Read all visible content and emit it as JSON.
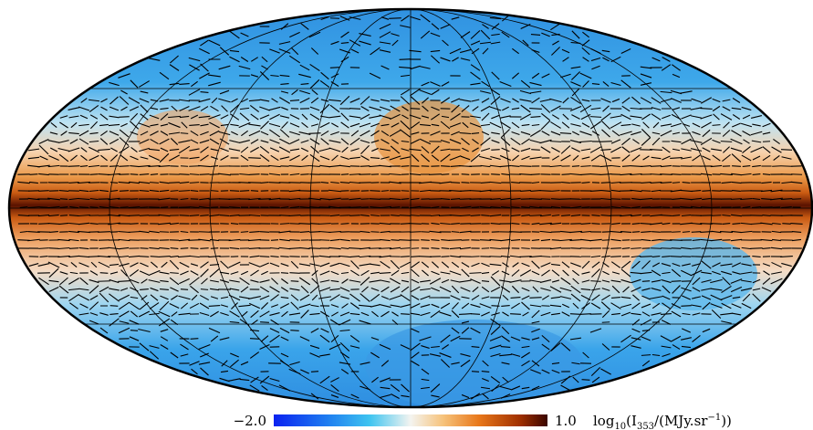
{
  "colorbar": {
    "lim": [
      -2,
      1
    ],
    "ticks": [
      {
        "value": -2,
        "label": "−2.0"
      },
      {
        "value": 1,
        "label": "1.0"
      }
    ],
    "label_parts": [
      "log",
      "10",
      "(I",
      "353",
      "/(MJy.sr",
      "−1",
      "))"
    ]
  }
}
